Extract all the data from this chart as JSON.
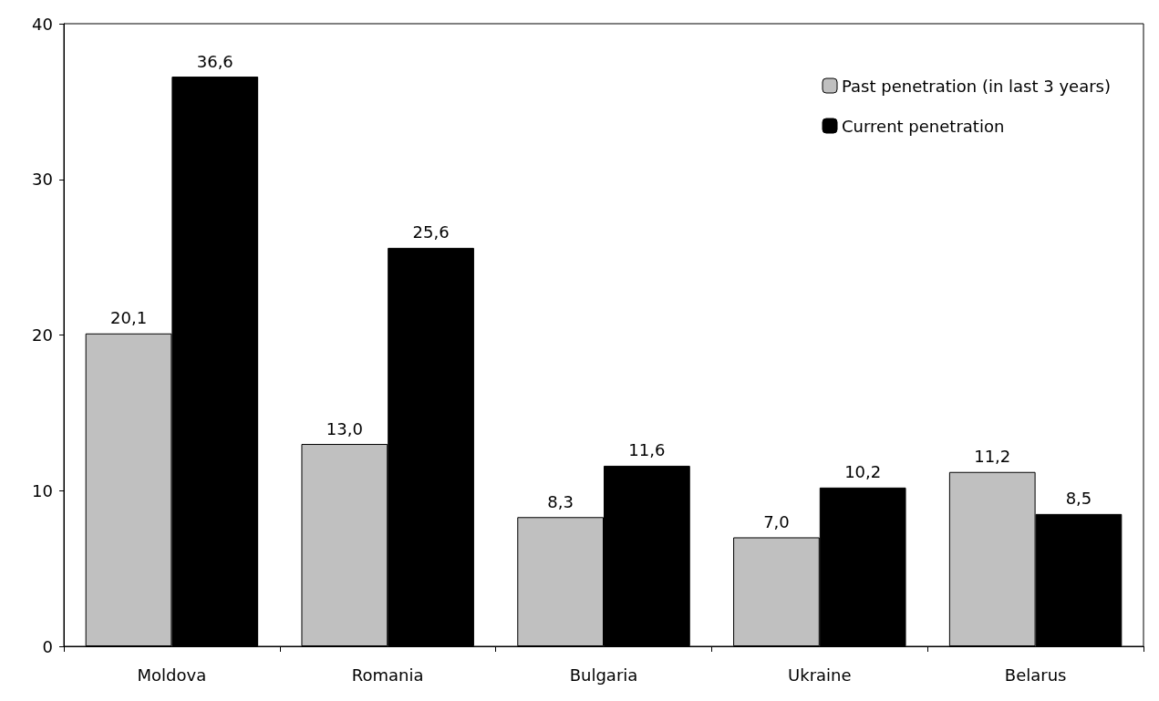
{
  "chart_data": {
    "type": "bar",
    "categories": [
      "Moldova",
      "Romania",
      "Bulgaria",
      "Ukraine",
      "Belarus"
    ],
    "series": [
      {
        "name": "Past penetration (in last 3 years)",
        "color": "#c0c0c0",
        "values": [
          20.1,
          13.0,
          8.3,
          7.0,
          11.2
        ],
        "value_labels": [
          "20,1",
          "13,0",
          "8,3",
          "7,0",
          "11,2"
        ]
      },
      {
        "name": "Current penetration",
        "color": "#000000",
        "values": [
          36.6,
          25.6,
          11.6,
          10.2,
          8.5
        ],
        "value_labels": [
          "36,6",
          "25,6",
          "11,6",
          "10,2",
          "8,5"
        ]
      }
    ],
    "ylim": [
      0,
      40
    ],
    "yticks": [
      0,
      10,
      20,
      30,
      40
    ],
    "grid": false,
    "legend": "top right"
  }
}
